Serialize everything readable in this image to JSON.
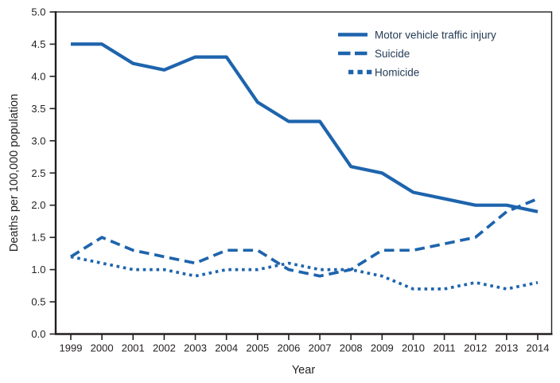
{
  "chart_data": {
    "type": "line",
    "title": "",
    "xlabel": "Year",
    "ylabel": "Deaths per 100,000 population",
    "categories": [
      "1999",
      "2000",
      "2001",
      "2002",
      "2003",
      "2004",
      "2005",
      "2006",
      "2007",
      "2008",
      "2009",
      "2010",
      "2011",
      "2012",
      "2013",
      "2014"
    ],
    "y_ticks": [
      "0.0",
      "0.5",
      "1.0",
      "1.5",
      "2.0",
      "2.5",
      "3.0",
      "3.5",
      "4.0",
      "4.5",
      "5.0"
    ],
    "ylim": [
      0.0,
      5.0
    ],
    "grid": "off",
    "legend_position": "top-right-inside",
    "series": [
      {
        "name": "Motor vehicle traffic injury",
        "style": "solid",
        "values": [
          4.5,
          4.5,
          4.2,
          4.1,
          4.3,
          4.3,
          3.6,
          3.3,
          3.3,
          2.6,
          2.5,
          2.2,
          2.1,
          2.0,
          2.0,
          1.9
        ]
      },
      {
        "name": "Suicide",
        "style": "dashed",
        "values": [
          1.2,
          1.5,
          1.3,
          1.2,
          1.1,
          1.3,
          1.3,
          1.0,
          0.9,
          1.0,
          1.3,
          1.3,
          1.4,
          1.5,
          1.9,
          2.1
        ]
      },
      {
        "name": "Homicide",
        "style": "dotted",
        "values": [
          1.2,
          1.1,
          1.0,
          1.0,
          0.9,
          1.0,
          1.0,
          1.1,
          1.0,
          1.0,
          0.9,
          0.7,
          0.7,
          0.8,
          0.7,
          0.8
        ]
      }
    ]
  },
  "colors": {
    "line_blue": "#1e64ad",
    "axis_text": "#231f20",
    "frame": "#231f20",
    "legend_text": "#243b55",
    "background": "#ffffff"
  }
}
